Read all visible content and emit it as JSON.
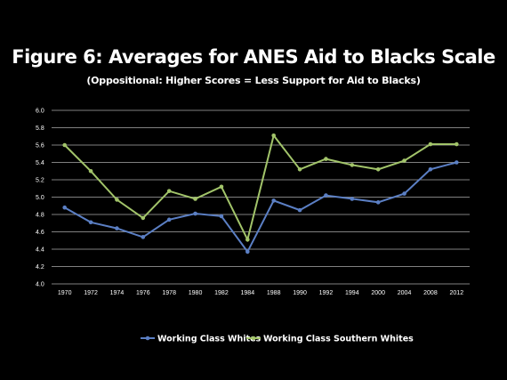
{
  "chart_data": {
    "type": "line",
    "title": "Figure 6: Averages for ANES Aid to Blacks Scale",
    "subtitle": "(Oppositional: Higher Scores = Less Support for Aid to Blacks)",
    "xlabel": "",
    "ylabel": "",
    "categories": [
      "1970",
      "1972",
      "1974",
      "1976",
      "1978",
      "1980",
      "1982",
      "1984",
      "1988",
      "1990",
      "1992",
      "1994",
      "2000",
      "2004",
      "2008",
      "2012"
    ],
    "yticks": [
      "4.0",
      "4.2",
      "4.4",
      "4.6",
      "4.8",
      "5.0",
      "5.2",
      "5.4",
      "5.6",
      "5.8",
      "6.0"
    ],
    "ylim": [
      4.0,
      6.0
    ],
    "grid": true,
    "legend_position": "bottom",
    "series": [
      {
        "name": "Working Class Whites",
        "color": "#5b7fc4",
        "values": [
          4.88,
          4.71,
          4.64,
          4.54,
          4.74,
          4.81,
          4.78,
          4.37,
          4.96,
          4.85,
          5.02,
          4.98,
          4.94,
          5.04,
          5.32,
          5.4
        ]
      },
      {
        "name": "Working Class Southern Whites",
        "color": "#a2c46a",
        "values": [
          5.6,
          5.3,
          4.97,
          4.76,
          5.07,
          4.98,
          5.12,
          4.51,
          5.71,
          5.32,
          5.44,
          5.37,
          5.32,
          5.42,
          5.61,
          5.61
        ]
      }
    ]
  }
}
